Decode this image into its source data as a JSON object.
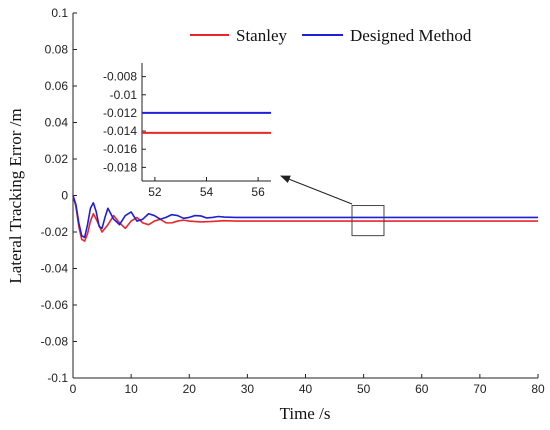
{
  "chart_data": [
    {
      "type": "line",
      "title": "",
      "xlabel": "Time /s",
      "ylabel": "Lateral Tracking Error /m",
      "xlim": [
        0,
        80
      ],
      "ylim": [
        -0.1,
        0.1
      ],
      "x_ticks": [
        "0",
        "10",
        "20",
        "30",
        "40",
        "50",
        "60",
        "70",
        "80"
      ],
      "y_ticks": [
        "-0.1",
        "-0.08",
        "-0.06",
        "-0.04",
        "-0.02",
        "0",
        "0.02",
        "0.04",
        "0.06",
        "0.08",
        "0.1"
      ],
      "grid": false,
      "legend_position": "top-right",
      "series": [
        {
          "name": "Stanley",
          "color": "#e8272a",
          "x": [
            0,
            0.5,
            1,
            1.5,
            2,
            2.5,
            3,
            3.5,
            4,
            5,
            6,
            7,
            8,
            9,
            10,
            11,
            12,
            13,
            14,
            15,
            16,
            17,
            18,
            19,
            20,
            22,
            24,
            26,
            28,
            30,
            35,
            40,
            50,
            60,
            70,
            80
          ],
          "y": [
            0,
            -0.006,
            -0.017,
            -0.024,
            -0.025,
            -0.021,
            -0.014,
            -0.01,
            -0.013,
            -0.02,
            -0.016,
            -0.011,
            -0.015,
            -0.018,
            -0.014,
            -0.012,
            -0.015,
            -0.016,
            -0.014,
            -0.013,
            -0.015,
            -0.015,
            -0.014,
            -0.0135,
            -0.014,
            -0.0145,
            -0.0142,
            -0.0138,
            -0.014,
            -0.014,
            -0.014,
            -0.014,
            -0.014,
            -0.014,
            -0.014,
            -0.014
          ]
        },
        {
          "name": "Designed Method",
          "color": "#1f1fd6",
          "x": [
            0,
            0.5,
            1,
            1.5,
            2,
            2.5,
            3,
            3.5,
            4,
            4.5,
            5,
            5.5,
            6,
            7,
            8,
            9,
            10,
            11,
            12,
            13,
            14,
            15,
            16,
            17,
            18,
            19,
            20,
            21,
            22,
            23,
            24,
            25,
            26,
            28,
            30,
            35,
            40,
            50,
            60,
            70,
            80
          ],
          "y": [
            0,
            -0.005,
            -0.015,
            -0.022,
            -0.023,
            -0.016,
            -0.007,
            -0.004,
            -0.009,
            -0.017,
            -0.018,
            -0.012,
            -0.007,
            -0.013,
            -0.016,
            -0.011,
            -0.009,
            -0.014,
            -0.013,
            -0.01,
            -0.011,
            -0.013,
            -0.012,
            -0.0105,
            -0.011,
            -0.0125,
            -0.012,
            -0.011,
            -0.0112,
            -0.0123,
            -0.012,
            -0.0115,
            -0.0118,
            -0.012,
            -0.012,
            -0.012,
            -0.012,
            -0.012,
            -0.012,
            -0.012,
            -0.012
          ]
        }
      ],
      "zoom_box": {
        "x_range": [
          48,
          53.5
        ],
        "y_range": [
          -0.022,
          -0.0055
        ]
      }
    },
    {
      "type": "line",
      "title": "",
      "xlabel": "",
      "ylabel": "",
      "xlim": [
        51.5,
        56.5
      ],
      "ylim": [
        -0.0195,
        -0.0065
      ],
      "x_ticks": [
        "52",
        "54",
        "56"
      ],
      "y_ticks": [
        "-0.018",
        "-0.016",
        "-0.014",
        "-0.012",
        "-0.01",
        "-0.008"
      ],
      "grid": false,
      "series": [
        {
          "name": "Stanley",
          "color": "#e8272a",
          "x": [
            51.5,
            56.5
          ],
          "y": [
            -0.0142,
            -0.0142
          ]
        },
        {
          "name": "Designed Method",
          "color": "#1f1fd6",
          "x": [
            51.5,
            56.5
          ],
          "y": [
            -0.012,
            -0.012
          ]
        }
      ]
    }
  ]
}
